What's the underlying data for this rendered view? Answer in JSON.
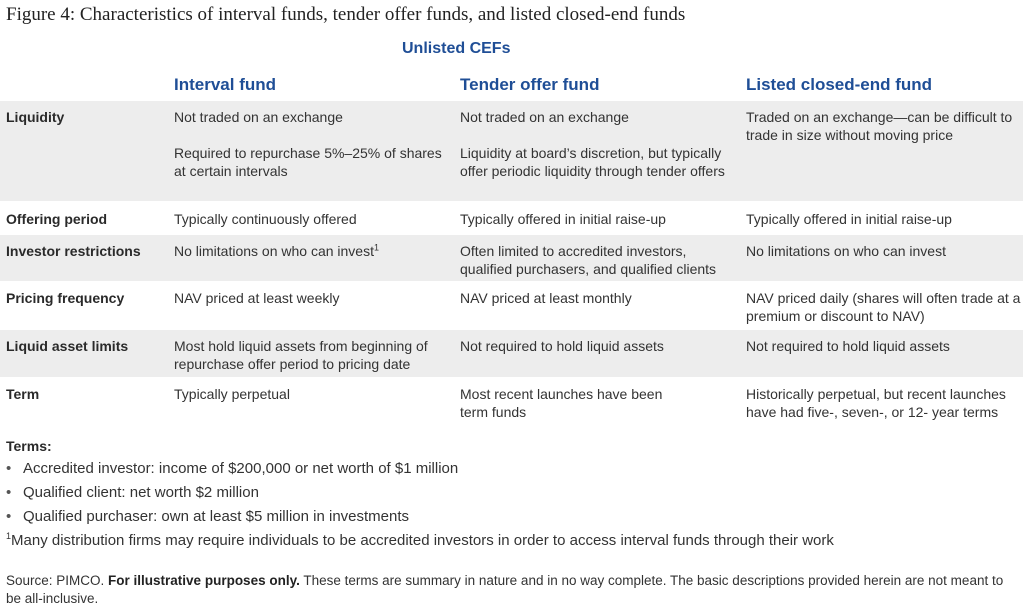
{
  "title": "Figure 4: Characteristics of interval funds, tender offer funds, and listed closed-end funds",
  "group_header": "Unlisted CEFs",
  "columns": [
    "Interval fund",
    "Tender offer fund",
    "Listed closed-end fund"
  ],
  "rows": [
    {
      "label": "Liquidity",
      "interval": [
        "Not traded on an exchange",
        "Required to repurchase 5%–25% of shares at certain intervals"
      ],
      "tender": [
        "Not traded on an exchange",
        "Liquidity at board’s discretion, but typically offer periodic liquidity through tender offers"
      ],
      "listed": [
        "Traded on an exchange—can be difficult to trade in size without moving price"
      ]
    },
    {
      "label": "Offering period",
      "interval": [
        "Typically continuously offered"
      ],
      "tender": [
        "Typically offered in initial raise-up"
      ],
      "listed": [
        "Typically offered in initial raise-up"
      ]
    },
    {
      "label": "Investor restrictions",
      "interval": [
        "No limitations on who can invest"
      ],
      "interval_sup": "1",
      "tender": [
        "Often limited to accredited investors, qualified purchasers, and qualified clients"
      ],
      "listed": [
        "No limitations on who can invest"
      ]
    },
    {
      "label": "Pricing frequency",
      "interval": [
        "NAV priced at least weekly"
      ],
      "tender": [
        "NAV priced at least monthly"
      ],
      "listed": [
        "NAV priced daily (shares will often trade at a premium or discount to NAV)"
      ]
    },
    {
      "label": "Liquid asset limits",
      "interval": [
        "Most hold liquid assets from beginning of repurchase offer period to pricing date"
      ],
      "tender": [
        "Not required to hold liquid assets"
      ],
      "listed": [
        "Not required to hold liquid assets"
      ]
    },
    {
      "label": "Term",
      "interval": [
        "Typically perpetual"
      ],
      "tender": [
        "Most recent launches have been term funds"
      ],
      "listed": [
        "Historically perpetual, but recent launches have had five-, seven-, or 12- year terms"
      ]
    }
  ],
  "terms": {
    "heading": "Terms:",
    "bullet_glyph": "•",
    "items": [
      "Accredited investor: income of $200,000 or net worth of $1 million",
      "Qualified client: net worth $2 million",
      "Qualified purchaser: own at least $5 million in investments"
    ]
  },
  "footnote": {
    "marker": "1",
    "text": "Many distribution firms may require individuals to be accredited investors in order to access interval funds through their work"
  },
  "source": {
    "prefix": "Source: PIMCO.",
    "bold": "For illustrative purposes only.",
    "text": "These terms are summary in nature and in no way complete. The basic descriptions provided herein are not meant to be all-inclusive."
  },
  "colors": {
    "header_blue": "#1f4e96",
    "row_shade": "#ededed",
    "body_text": "#333333"
  }
}
